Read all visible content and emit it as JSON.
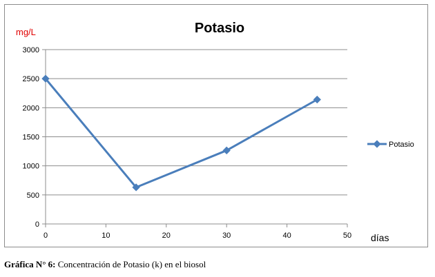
{
  "chart_data": {
    "type": "line",
    "title": "Potasio",
    "ylabel": "mg/L",
    "xlabel": "días",
    "xlim": [
      0,
      50
    ],
    "ylim": [
      0,
      3000
    ],
    "x_ticks": [
      0,
      10,
      20,
      30,
      40,
      50
    ],
    "y_ticks": [
      0,
      500,
      1000,
      1500,
      2000,
      2500,
      3000
    ],
    "grid": "horizontal",
    "legend": "right",
    "series": [
      {
        "name": "Potasio",
        "color": "#4a7ebb",
        "x": [
          0,
          15,
          30,
          45
        ],
        "y": [
          2500,
          630,
          1265,
          2140
        ]
      }
    ]
  },
  "caption": {
    "label": "Gráfica N° 6:",
    "text": " Concentración de Potasio (k) en el biosol"
  }
}
